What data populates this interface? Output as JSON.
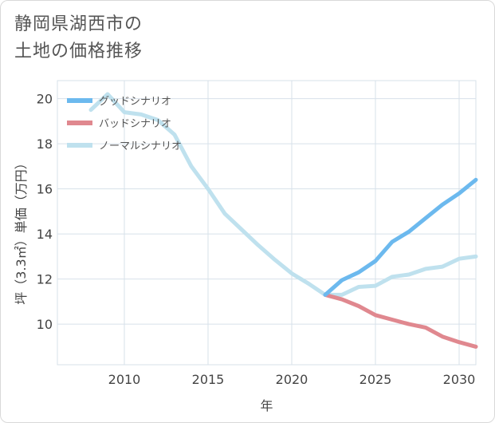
{
  "title": {
    "line1": "静岡県湖西市の",
    "line2": "土地の価格推移"
  },
  "chart_data": {
    "type": "line",
    "xlabel": "年",
    "ylabel": "坪（3.3㎡）単価（万円）",
    "xlim": [
      2006,
      2031
    ],
    "ylim": [
      8.2,
      20.8
    ],
    "xticks": [
      2010,
      2015,
      2020,
      2025,
      2030
    ],
    "yticks": [
      10,
      12,
      14,
      16,
      18,
      20
    ],
    "grid": true,
    "legend_position": "top-left",
    "series": [
      {
        "name": "グッドシナリオ",
        "color": "#6cb9ee",
        "x": [
          2022,
          2023,
          2024,
          2025,
          2026,
          2027,
          2028,
          2029,
          2030,
          2031
        ],
        "y": [
          11.3,
          11.95,
          12.3,
          12.8,
          13.65,
          14.1,
          14.7,
          15.3,
          15.8,
          16.4
        ]
      },
      {
        "name": "バッドシナリオ",
        "color": "#e0888f",
        "x": [
          2022,
          2023,
          2024,
          2025,
          2026,
          2027,
          2028,
          2029,
          2030,
          2031
        ],
        "y": [
          11.3,
          11.1,
          10.8,
          10.4,
          10.2,
          10.0,
          9.85,
          9.45,
          9.2,
          9.0
        ]
      },
      {
        "name": "ノーマルシナリオ",
        "color": "#bfe1ee",
        "x": [
          2008,
          2009,
          2010,
          2011,
          2012,
          2013,
          2014,
          2015,
          2016,
          2017,
          2018,
          2019,
          2020,
          2021,
          2022,
          2023,
          2024,
          2025,
          2026,
          2027,
          2028,
          2029,
          2030,
          2031
        ],
        "y": [
          19.5,
          20.2,
          19.4,
          19.3,
          19.05,
          18.4,
          17.0,
          16.0,
          14.9,
          14.2,
          13.5,
          12.85,
          12.25,
          11.8,
          11.3,
          11.3,
          11.65,
          11.7,
          12.1,
          12.2,
          12.45,
          12.55,
          12.9,
          13.0
        ]
      }
    ]
  }
}
